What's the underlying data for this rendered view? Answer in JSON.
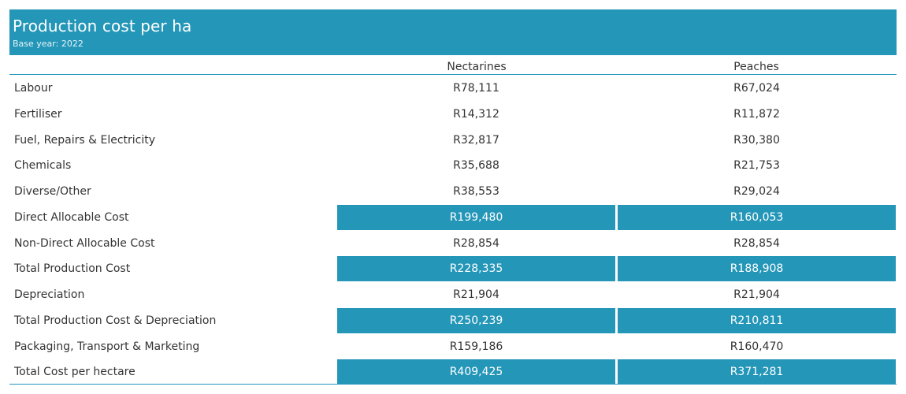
{
  "header": {
    "title": "Production cost per ha",
    "subtitle": "Base year: 2022"
  },
  "colors": {
    "accent": "#2496b8",
    "text": "#333333"
  },
  "chart_data": {
    "type": "table",
    "title": "Production cost per ha",
    "subtitle": "Base year: 2022",
    "columns": [
      "Nectarines",
      "Peaches"
    ],
    "rows": [
      {
        "label": "Labour",
        "values": [
          "R78,111",
          "R67,024"
        ],
        "highlight": false
      },
      {
        "label": "Fertiliser",
        "values": [
          "R14,312",
          "R11,872"
        ],
        "highlight": false
      },
      {
        "label": "Fuel, Repairs & Electricity",
        "values": [
          "R32,817",
          "R30,380"
        ],
        "highlight": false
      },
      {
        "label": "Chemicals",
        "values": [
          "R35,688",
          "R21,753"
        ],
        "highlight": false
      },
      {
        "label": "Diverse/Other",
        "values": [
          "R38,553",
          "R29,024"
        ],
        "highlight": false
      },
      {
        "label": "Direct Allocable Cost",
        "values": [
          "R199,480",
          "R160,053"
        ],
        "highlight": true
      },
      {
        "label": "Non-Direct Allocable Cost",
        "values": [
          "R28,854",
          "R28,854"
        ],
        "highlight": false
      },
      {
        "label": "Total Production Cost",
        "values": [
          "R228,335",
          "R188,908"
        ],
        "highlight": true
      },
      {
        "label": "Depreciation",
        "values": [
          "R21,904",
          "R21,904"
        ],
        "highlight": false
      },
      {
        "label": "Total Production Cost & Depreciation",
        "values": [
          "R250,239",
          "R210,811"
        ],
        "highlight": true
      },
      {
        "label": "Packaging, Transport & Marketing",
        "values": [
          "R159,186",
          "R160,470"
        ],
        "highlight": false
      },
      {
        "label": "Total Cost per hectare",
        "values": [
          "R409,425",
          "R371,281"
        ],
        "highlight": true
      }
    ]
  }
}
